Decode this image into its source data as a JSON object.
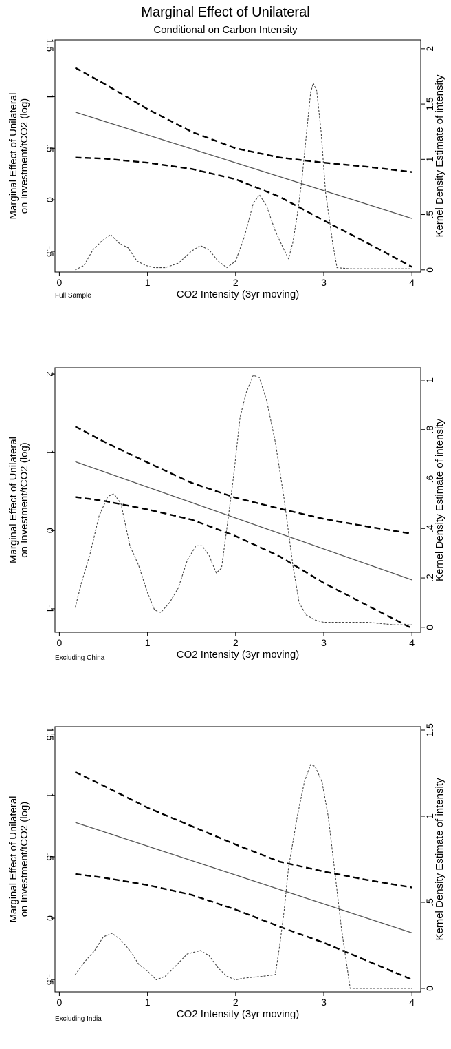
{
  "title": "Marginal Effect of Unilateral",
  "subtitle": "Conditional on Carbon Intensity",
  "colors": {
    "background": "#ffffff",
    "line": "#000000",
    "estimate": "#555555",
    "ci": "#000000",
    "density": "#444444"
  },
  "chart_data": [
    {
      "type": "line",
      "note": "Full Sample",
      "xlabel": "CO2 Intensity (3yr moving)",
      "ylabel": [
        "Marginal Effect of Unilateral",
        "on Investment/tCO2 (log)"
      ],
      "y2label": "Kernel Density Estimate of intensity",
      "xlim": [
        -0.05,
        4.1
      ],
      "ylim": [
        -0.7,
        1.55
      ],
      "y2lim": [
        -0.02,
        2.08
      ],
      "xticks": [
        0,
        1,
        2,
        3,
        4
      ],
      "xtick_labels": [
        "0",
        "1",
        "2",
        "3",
        "4"
      ],
      "yticks": [
        -0.5,
        0,
        0.5,
        1,
        1.5
      ],
      "ytick_labels": [
        "-.5",
        "0",
        ".5",
        "1",
        "1.5"
      ],
      "y2ticks": [
        0,
        0.5,
        1,
        1.5,
        2
      ],
      "y2tick_labels": [
        "0",
        ".5",
        "1",
        "1.5",
        "2"
      ],
      "series": [
        {
          "role": "estimate",
          "axis": "left",
          "style": "solid",
          "x": [
            0.18,
            4.0
          ],
          "y": [
            0.85,
            -0.18
          ]
        },
        {
          "role": "ci_upper",
          "axis": "left",
          "style": "dashed",
          "x": [
            0.18,
            0.5,
            1.0,
            1.5,
            2.0,
            2.5,
            3.0,
            3.5,
            4.0
          ],
          "y": [
            1.28,
            1.13,
            0.88,
            0.66,
            0.5,
            0.41,
            0.36,
            0.32,
            0.27
          ]
        },
        {
          "role": "ci_lower",
          "axis": "left",
          "style": "dashed",
          "x": [
            0.18,
            0.5,
            1.0,
            1.5,
            2.0,
            2.5,
            3.0,
            3.5,
            4.0
          ],
          "y": [
            0.41,
            0.4,
            0.36,
            0.3,
            0.2,
            0.03,
            -0.2,
            -0.42,
            -0.65
          ]
        },
        {
          "role": "density",
          "axis": "right",
          "style": "dotted",
          "x": [
            0.18,
            0.28,
            0.38,
            0.48,
            0.58,
            0.68,
            0.78,
            0.88,
            0.98,
            1.08,
            1.2,
            1.35,
            1.5,
            1.6,
            1.7,
            1.8,
            1.9,
            2.0,
            2.1,
            2.2,
            2.27,
            2.35,
            2.45,
            2.55,
            2.6,
            2.65,
            2.7,
            2.75,
            2.8,
            2.85,
            2.88,
            2.92,
            2.97,
            3.02,
            3.1,
            3.15,
            3.3,
            3.5,
            3.8,
            4.0
          ],
          "y": [
            0.0,
            0.04,
            0.18,
            0.26,
            0.32,
            0.24,
            0.2,
            0.08,
            0.04,
            0.02,
            0.02,
            0.06,
            0.17,
            0.22,
            0.18,
            0.08,
            0.02,
            0.08,
            0.3,
            0.6,
            0.68,
            0.58,
            0.35,
            0.18,
            0.1,
            0.25,
            0.5,
            0.8,
            1.2,
            1.6,
            1.69,
            1.62,
            1.25,
            0.7,
            0.25,
            0.02,
            0.01,
            0.01,
            0.01,
            0.01
          ]
        }
      ]
    },
    {
      "type": "line",
      "note": "Excluding China",
      "xlabel": "CO2 Intensity (3yr moving)",
      "ylabel": [
        "Marginal Effect of Unilateral",
        "on Investment/tCO2 (log)"
      ],
      "y2label": "Kernel Density Estimate of intensity",
      "xlim": [
        -0.05,
        4.1
      ],
      "ylim": [
        -1.3,
        2.08
      ],
      "y2lim": [
        -0.02,
        1.05
      ],
      "xticks": [
        0,
        1,
        2,
        3,
        4
      ],
      "xtick_labels": [
        "0",
        "1",
        "2",
        "3",
        "4"
      ],
      "yticks": [
        -1,
        0,
        1,
        2
      ],
      "ytick_labels": [
        "-1",
        "0",
        "1",
        "2"
      ],
      "y2ticks": [
        0,
        0.2,
        0.4,
        0.6,
        0.8,
        1.0
      ],
      "y2tick_labels": [
        "0",
        ".2",
        ".4",
        ".6",
        ".8",
        "1"
      ],
      "series": [
        {
          "role": "estimate",
          "axis": "left",
          "style": "solid",
          "x": [
            0.18,
            4.0
          ],
          "y": [
            0.88,
            -0.63
          ]
        },
        {
          "role": "ci_upper",
          "axis": "left",
          "style": "dashed",
          "x": [
            0.18,
            0.5,
            1.0,
            1.5,
            2.0,
            2.5,
            3.0,
            3.5,
            4.0
          ],
          "y": [
            1.33,
            1.14,
            0.87,
            0.61,
            0.42,
            0.28,
            0.15,
            0.05,
            -0.04
          ]
        },
        {
          "role": "ci_lower",
          "axis": "left",
          "style": "dashed",
          "x": [
            0.18,
            0.5,
            1.0,
            1.5,
            2.0,
            2.5,
            3.0,
            3.5,
            4.0
          ],
          "y": [
            0.43,
            0.38,
            0.27,
            0.14,
            -0.07,
            -0.33,
            -0.67,
            -0.96,
            -1.25
          ]
        },
        {
          "role": "density",
          "axis": "right",
          "style": "dotted",
          "x": [
            0.18,
            0.25,
            0.35,
            0.45,
            0.55,
            0.62,
            0.7,
            0.8,
            0.9,
            1.0,
            1.08,
            1.15,
            1.25,
            1.35,
            1.45,
            1.55,
            1.62,
            1.7,
            1.78,
            1.84,
            1.9,
            1.98,
            2.05,
            2.12,
            2.2,
            2.27,
            2.35,
            2.45,
            2.55,
            2.65,
            2.72,
            2.8,
            2.9,
            3.0,
            3.2,
            3.5,
            3.8,
            4.0
          ],
          "y": [
            0.08,
            0.18,
            0.3,
            0.45,
            0.53,
            0.54,
            0.5,
            0.33,
            0.25,
            0.14,
            0.07,
            0.06,
            0.1,
            0.16,
            0.27,
            0.33,
            0.33,
            0.29,
            0.22,
            0.24,
            0.4,
            0.62,
            0.85,
            0.95,
            1.02,
            1.01,
            0.92,
            0.75,
            0.52,
            0.25,
            0.1,
            0.05,
            0.03,
            0.02,
            0.02,
            0.02,
            0.01,
            0.01
          ]
        }
      ]
    },
    {
      "type": "line",
      "note": "Excluding India",
      "xlabel": "CO2 Intensity (3yr moving)",
      "ylabel": [
        "Marginal Effect of Unilateral",
        "on Investment/tCO2 (log)"
      ],
      "y2label": "Kernel Density Estimate of intensity",
      "xlim": [
        -0.05,
        4.1
      ],
      "ylim": [
        -0.6,
        1.56
      ],
      "y2lim": [
        -0.02,
        1.52
      ],
      "xticks": [
        0,
        1,
        2,
        3,
        4
      ],
      "xtick_labels": [
        "0",
        "1",
        "2",
        "3",
        "4"
      ],
      "yticks": [
        -0.5,
        0,
        0.5,
        1,
        1.5
      ],
      "ytick_labels": [
        "-.5",
        "0",
        ".5",
        "1",
        "1.5"
      ],
      "y2ticks": [
        0,
        0.5,
        1,
        1.5
      ],
      "y2tick_labels": [
        "0",
        ".5",
        "1",
        "1.5"
      ],
      "series": [
        {
          "role": "estimate",
          "axis": "left",
          "style": "solid",
          "x": [
            0.18,
            4.0
          ],
          "y": [
            0.78,
            -0.12
          ]
        },
        {
          "role": "ci_upper",
          "axis": "left",
          "style": "dashed",
          "x": [
            0.18,
            0.5,
            1.0,
            1.5,
            2.0,
            2.5,
            3.0,
            3.5,
            4.0
          ],
          "y": [
            1.19,
            1.08,
            0.9,
            0.75,
            0.6,
            0.46,
            0.38,
            0.31,
            0.25
          ]
        },
        {
          "role": "ci_lower",
          "axis": "left",
          "style": "dashed",
          "x": [
            0.18,
            0.5,
            1.0,
            1.5,
            2.0,
            2.5,
            3.0,
            3.5,
            4.0
          ],
          "y": [
            0.36,
            0.33,
            0.27,
            0.19,
            0.07,
            -0.07,
            -0.2,
            -0.35,
            -0.5
          ]
        },
        {
          "role": "density",
          "axis": "right",
          "style": "dotted",
          "x": [
            0.18,
            0.28,
            0.4,
            0.5,
            0.6,
            0.7,
            0.8,
            0.9,
            1.0,
            1.1,
            1.2,
            1.3,
            1.45,
            1.6,
            1.7,
            1.8,
            1.9,
            2.0,
            2.1,
            2.3,
            2.45,
            2.5,
            2.55,
            2.6,
            2.7,
            2.78,
            2.85,
            2.9,
            2.98,
            3.05,
            3.12,
            3.2,
            3.3,
            3.5,
            3.8,
            4.0
          ],
          "y": [
            0.08,
            0.15,
            0.22,
            0.3,
            0.32,
            0.28,
            0.22,
            0.14,
            0.1,
            0.05,
            0.07,
            0.12,
            0.2,
            0.22,
            0.19,
            0.12,
            0.07,
            0.05,
            0.06,
            0.07,
            0.08,
            0.25,
            0.45,
            0.7,
            1.0,
            1.2,
            1.3,
            1.29,
            1.2,
            1.0,
            0.7,
            0.35,
            0.0,
            0.0,
            0.0,
            0.0
          ]
        }
      ]
    }
  ]
}
